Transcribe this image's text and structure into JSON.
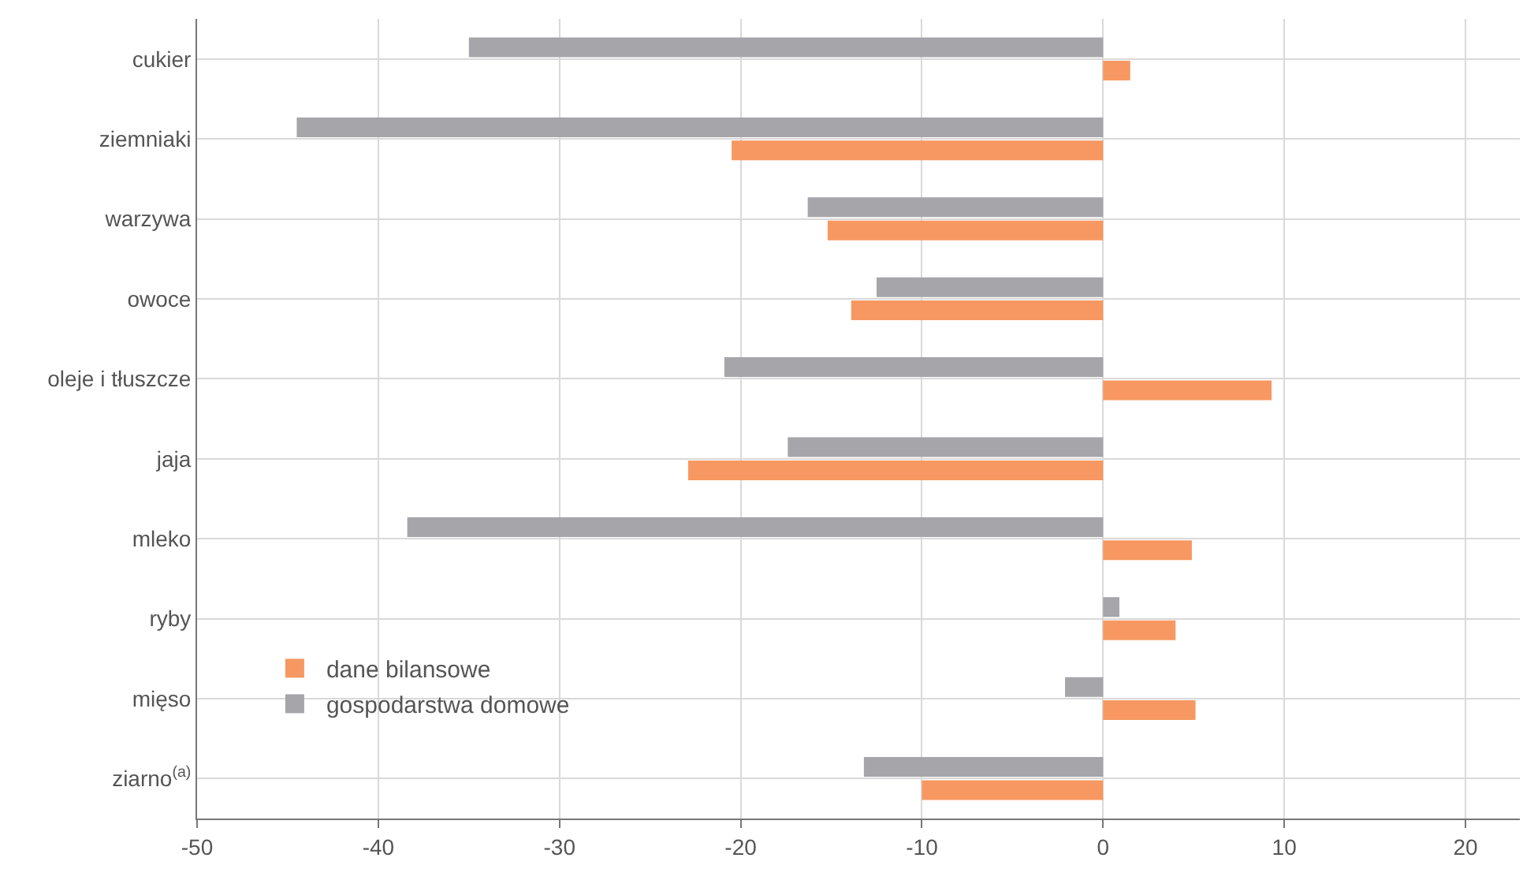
{
  "chart_data": {
    "type": "bar",
    "orientation": "horizontal",
    "categories": [
      "cukier",
      "ziemniaki",
      "warzywa",
      "owoce",
      "oleje i tłuszcze",
      "jaja",
      "mleko",
      "ryby",
      "mięso",
      "ziarno$^{(a)}$"
    ],
    "series": [
      {
        "name": "dane bilansowe",
        "color": "#f79862",
        "values": [
          1.5,
          -20.5,
          -15.2,
          -13.9,
          9.3,
          -22.9,
          4.9,
          4.0,
          5.1,
          -10.0
        ]
      },
      {
        "name": "gospodarstwa domowe",
        "color": "#a5a5aa",
        "values": [
          -35.0,
          -44.5,
          -16.3,
          -12.5,
          -20.9,
          -17.4,
          -38.4,
          0.9,
          -2.1,
          -13.2
        ]
      }
    ],
    "xlim": [
      -50,
      23
    ],
    "xticks": [
      -50,
      -40,
      -30,
      -20,
      -10,
      0,
      10,
      20
    ],
    "grid": true,
    "legend": "bottom left"
  }
}
